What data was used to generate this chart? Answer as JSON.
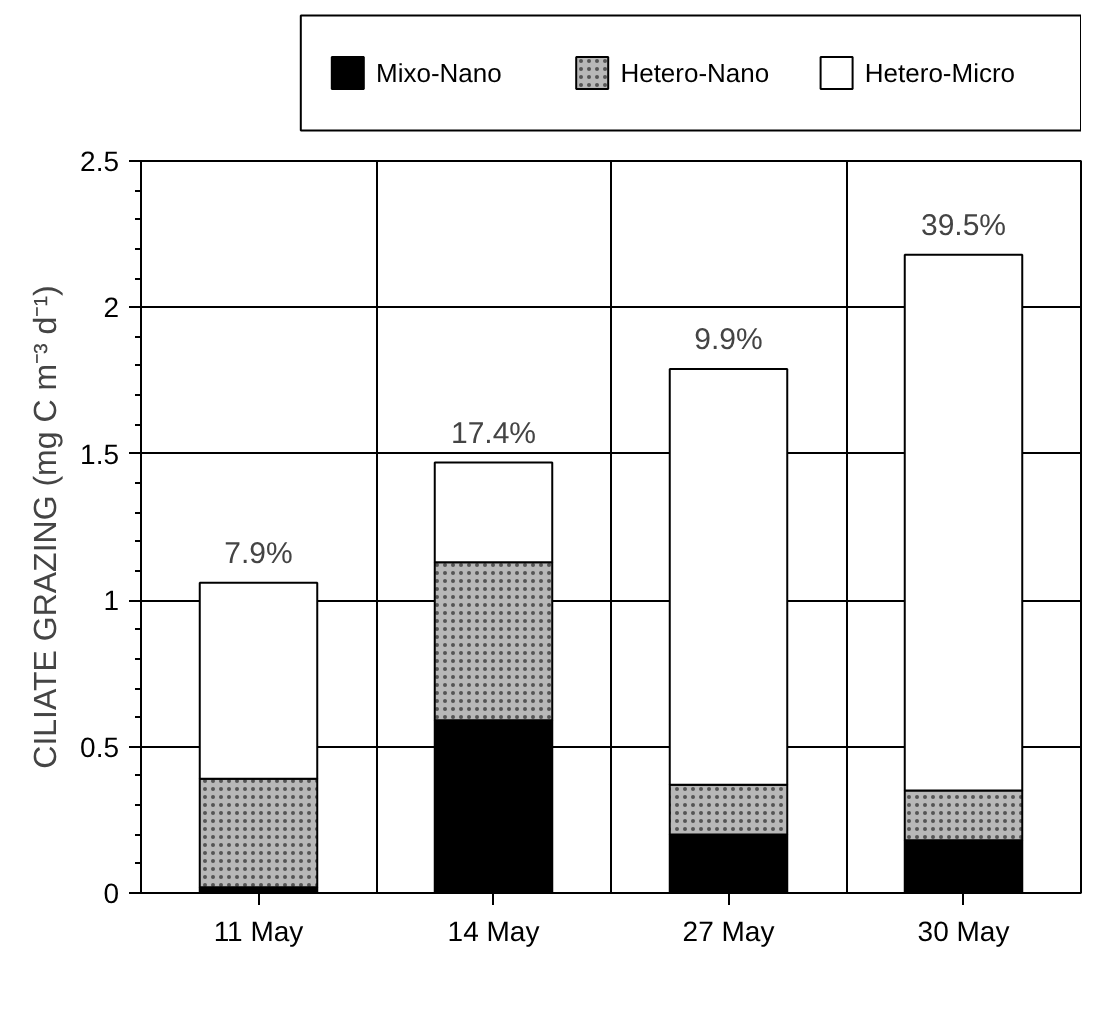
{
  "chart_data": {
    "type": "bar",
    "stacked": true,
    "categories": [
      "11 May",
      "14 May",
      "27 May",
      "30 May"
    ],
    "series": [
      {
        "name": "Mixo-Nano",
        "color": "#000000",
        "values": [
          0.02,
          0.59,
          0.2,
          0.18
        ]
      },
      {
        "name": "Hetero-Nano",
        "color": "#b8b8b8",
        "values": [
          0.37,
          0.54,
          0.17,
          0.17
        ]
      },
      {
        "name": "Hetero-Micro",
        "color": "#ffffff",
        "values": [
          0.67,
          0.34,
          1.42,
          1.83
        ]
      }
    ],
    "ylabel": "CILIATE GRAZING (mg C m⁻³ d⁻¹)",
    "ylim": [
      0,
      2.5
    ],
    "yticks": [
      0,
      0.5,
      1,
      1.5,
      2,
      2.5
    ],
    "annotations": [
      {
        "text": "7.9%",
        "x": "11 May",
        "y": 1.06
      },
      {
        "text": "17.4%",
        "x": "14 May",
        "y": 1.47
      },
      {
        "text": "9.9%",
        "x": "27 May",
        "y": 1.79
      },
      {
        "text": "39.5%",
        "x": "30 May",
        "y": 2.18
      }
    ],
    "grid": true,
    "legend": "top"
  }
}
